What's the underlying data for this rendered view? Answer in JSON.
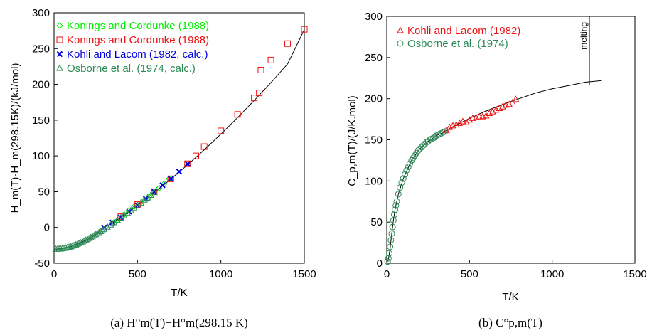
{
  "chart_data": [
    {
      "type": "scatter",
      "xlabel": "T/K",
      "ylabel": "H_m(T)-H_m(298.15K)/(kJ/mol)",
      "xlim": [
        0,
        1500
      ],
      "ylim": [
        -50,
        300
      ],
      "xticks": [
        "0",
        "500",
        "1000",
        "1500"
      ],
      "yticks": [
        "-50",
        "0",
        "50",
        "100",
        "150",
        "200",
        "250",
        "300"
      ],
      "legend_position": "top-left",
      "grid": false,
      "caption": "(a) H°m(T)−H°m(298.15 K)",
      "fit_curve": {
        "x": [
          0,
          20,
          50,
          100,
          150,
          200,
          250,
          298.15,
          350,
          400,
          450,
          500,
          600,
          700,
          800,
          900,
          1000,
          1100,
          1200,
          1300,
          1400,
          1500
        ],
        "y": [
          -30.5,
          -30.4,
          -29.7,
          -26.8,
          -22.4,
          -16.8,
          -10.0,
          -0.5,
          6.5,
          14.0,
          22.0,
          30.5,
          48.5,
          67.5,
          87.5,
          108.5,
          130.5,
          153.5,
          177.5,
          202.5,
          228.5,
          276.5
        ]
      },
      "series": [
        {
          "name": "Konings and Cordunke (1988)",
          "marker": "diamond",
          "color": "#00ee00",
          "x": [
            350,
            380,
            420,
            450,
            480,
            510,
            540,
            570,
            600,
            630,
            660,
            690
          ],
          "y": [
            6,
            10,
            18,
            24,
            29,
            33,
            38,
            43,
            50,
            55,
            61,
            68
          ]
        },
        {
          "name": "Konings and Cordunke (1988)",
          "marker": "square",
          "color": "#ee1111",
          "x": [
            400,
            500,
            600,
            700,
            800,
            850,
            900,
            1000,
            1100,
            1200,
            1230,
            1240,
            1300,
            1400,
            1500
          ],
          "y": [
            15,
            32,
            50,
            68,
            89,
            100,
            113,
            135,
            158,
            181,
            188,
            220,
            234,
            257,
            277
          ]
        },
        {
          "name": "Kohli and Lacom (1982, calc.)",
          "marker": "x",
          "color": "#0000dd",
          "x": [
            300,
            350,
            400,
            450,
            500,
            550,
            600,
            650,
            700,
            750,
            800
          ],
          "y": [
            0,
            7,
            14,
            22,
            31,
            40,
            50,
            59,
            68,
            78,
            89
          ]
        },
        {
          "name": "Osborne et al. (1974, calc.)",
          "marker": "triangle",
          "color": "#2e8b57",
          "x": [
            10,
            20,
            30,
            40,
            50,
            60,
            70,
            80,
            90,
            100,
            110,
            120,
            130,
            140,
            150,
            160,
            170,
            180,
            190,
            200,
            210,
            220,
            230,
            240,
            250,
            260,
            270,
            280,
            290,
            300,
            320,
            340,
            360,
            380,
            400,
            420,
            440,
            460,
            480,
            500,
            520,
            540,
            560,
            580,
            600
          ],
          "y": [
            -30.5,
            -30.4,
            -30.2,
            -30.0,
            -29.7,
            -29.3,
            -28.9,
            -28.3,
            -27.7,
            -27.0,
            -26.2,
            -25.4,
            -24.5,
            -23.5,
            -22.5,
            -21.5,
            -20.4,
            -19.2,
            -18.0,
            -16.8,
            -15.5,
            -14.2,
            -12.9,
            -11.5,
            -10.1,
            -8.7,
            -7.2,
            -5.7,
            -4.2,
            -2.7,
            0.4,
            3.5,
            6.7,
            9.9,
            13.2,
            16.5,
            19.9,
            23.3,
            26.8,
            30.3,
            33.9,
            37.5,
            41.2,
            44.9,
            48.7
          ]
        }
      ]
    },
    {
      "type": "scatter",
      "xlabel": "T/K",
      "ylabel": "C_p,m(T)/(J/K.mol)",
      "xlim": [
        0,
        1500
      ],
      "ylim": [
        0,
        300
      ],
      "xticks": [
        "0",
        "500",
        "1000",
        "1500"
      ],
      "yticks": [
        "0",
        "50",
        "100",
        "150",
        "200",
        "250",
        "300"
      ],
      "legend_position": "top-left",
      "grid": false,
      "caption": "(b) C°p,m(T)",
      "annotation": {
        "text": "melting",
        "x": 1225
      },
      "fit_curve": {
        "x": [
          0,
          10,
          20,
          30,
          40,
          50,
          70,
          100,
          150,
          200,
          250,
          300,
          350,
          400,
          500,
          600,
          700,
          800,
          900,
          1000,
          1100,
          1200,
          1300
        ],
        "y": [
          0,
          5,
          18,
          36,
          52,
          65,
          84,
          103,
          125,
          139,
          148,
          155,
          160,
          166,
          176,
          185,
          193,
          200,
          207,
          212,
          216,
          220,
          222
        ]
      },
      "series": [
        {
          "name": "Kohli and Lacom (1982)",
          "marker": "triangle",
          "color": "#ee1111",
          "x": [
            360,
            380,
            400,
            420,
            440,
            460,
            480,
            500,
            520,
            540,
            560,
            580,
            600,
            620,
            640,
            660,
            680,
            700,
            720,
            740,
            760,
            780
          ],
          "y": [
            161,
            165,
            167,
            168,
            170,
            172,
            171,
            174,
            176,
            177,
            178,
            178,
            179,
            182,
            184,
            186,
            188,
            190,
            192,
            193,
            195,
            199
          ]
        },
        {
          "name": "Osborne et al. (1974)",
          "marker": "circle",
          "color": "#2e8b57",
          "x": [
            5,
            10,
            15,
            20,
            25,
            30,
            35,
            40,
            45,
            50,
            55,
            60,
            70,
            80,
            90,
            100,
            110,
            120,
            130,
            140,
            150,
            160,
            170,
            180,
            190,
            200,
            210,
            220,
            230,
            240,
            250,
            260,
            270,
            280,
            290,
            300,
            310,
            320,
            330,
            340,
            350
          ],
          "y": [
            2,
            6,
            12,
            20,
            28,
            36,
            44,
            52,
            59,
            65,
            70,
            75,
            84,
            92,
            98,
            103,
            108,
            113,
            117,
            121,
            125,
            128,
            131,
            134,
            137,
            139,
            141,
            143,
            145,
            147,
            148,
            150,
            151,
            152,
            153,
            155,
            156,
            157,
            158,
            159,
            160
          ]
        }
      ]
    }
  ]
}
